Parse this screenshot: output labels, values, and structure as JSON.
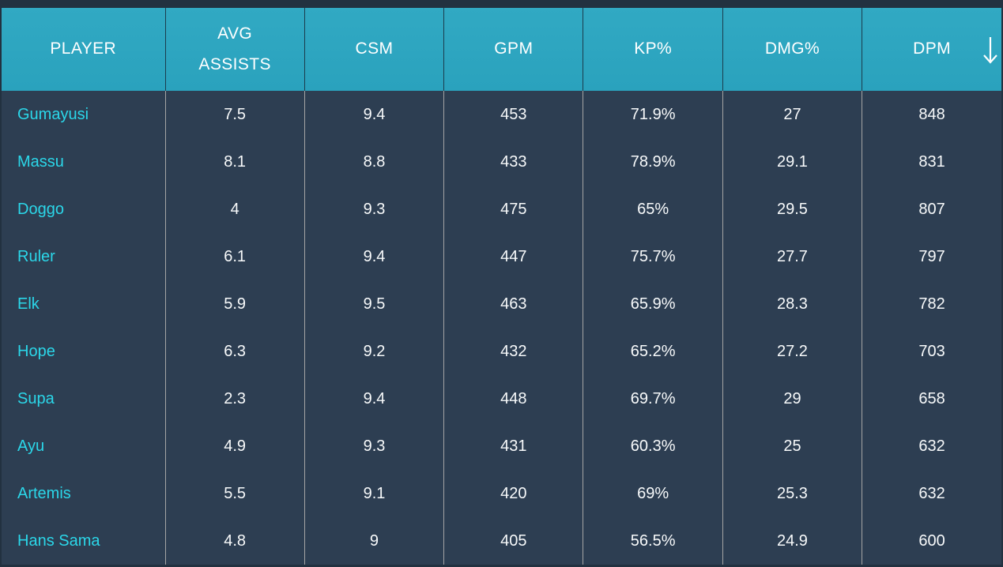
{
  "colors": {
    "page_bg": "#223140",
    "header_bg": "#2aa2bd",
    "header_text": "#ffffff",
    "body_bg": "#2d3e52",
    "divider": "#a5a5a5",
    "player_link": "#2bd7e9",
    "value_text": "#f8fafb"
  },
  "table": {
    "sort": {
      "column_key": "dpm",
      "direction": "descending",
      "icon": "arrow-down-icon"
    },
    "columns": [
      {
        "key": "player",
        "label": "PLAYER"
      },
      {
        "key": "avg_assists",
        "label": "AVG ASSISTS"
      },
      {
        "key": "csm",
        "label": "CSM"
      },
      {
        "key": "gpm",
        "label": "GPM"
      },
      {
        "key": "kp_pct",
        "label": "KP%"
      },
      {
        "key": "dmg_pct",
        "label": "DMG%"
      },
      {
        "key": "dpm",
        "label": "DPM"
      }
    ],
    "rows": [
      [
        "Gumayusi",
        "7.5",
        "9.4",
        "453",
        "71.9%",
        "27",
        "848"
      ],
      [
        "Massu",
        "8.1",
        "8.8",
        "433",
        "78.9%",
        "29.1",
        "831"
      ],
      [
        "Doggo",
        "4",
        "9.3",
        "475",
        "65%",
        "29.5",
        "807"
      ],
      [
        "Ruler",
        "6.1",
        "9.4",
        "447",
        "75.7%",
        "27.7",
        "797"
      ],
      [
        "Elk",
        "5.9",
        "9.5",
        "463",
        "65.9%",
        "28.3",
        "782"
      ],
      [
        "Hope",
        "6.3",
        "9.2",
        "432",
        "65.2%",
        "27.2",
        "703"
      ],
      [
        "Supa",
        "2.3",
        "9.4",
        "448",
        "69.7%",
        "29",
        "658"
      ],
      [
        "Ayu",
        "4.9",
        "9.3",
        "431",
        "60.3%",
        "25",
        "632"
      ],
      [
        "Artemis",
        "5.5",
        "9.1",
        "420",
        "69%",
        "25.3",
        "632"
      ],
      [
        "Hans Sama",
        "4.8",
        "9",
        "405",
        "56.5%",
        "24.9",
        "600"
      ]
    ]
  }
}
